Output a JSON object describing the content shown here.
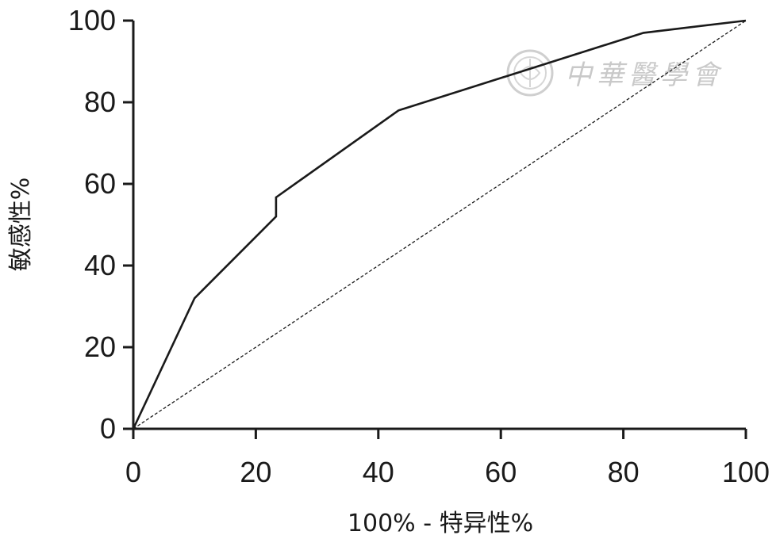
{
  "chart_data": {
    "type": "line",
    "title": "",
    "xlabel": "100% - 特异性%",
    "ylabel": "敏感性%",
    "xlim": [
      0,
      100
    ],
    "ylim": [
      0,
      100
    ],
    "x_ticks": [
      "0",
      "20",
      "40",
      "60",
      "80",
      "100"
    ],
    "y_ticks": [
      "0",
      "20",
      "40",
      "60",
      "80",
      "100"
    ],
    "grid": false,
    "legend": "none",
    "series": [
      {
        "style": "solid",
        "color": "#1a1a1a",
        "points": [
          [
            0,
            0
          ],
          [
            10,
            32
          ],
          [
            23.3,
            52
          ],
          [
            23.3,
            56.7
          ],
          [
            43.3,
            78
          ],
          [
            83.3,
            97
          ],
          [
            100,
            100
          ]
        ]
      },
      {
        "style": "dashed",
        "color": "#1a1a1a",
        "points": [
          [
            0,
            0
          ],
          [
            100,
            100
          ]
        ]
      }
    ]
  },
  "watermark": {
    "text": "中華醫學會",
    "color": "#c9c9c9"
  }
}
